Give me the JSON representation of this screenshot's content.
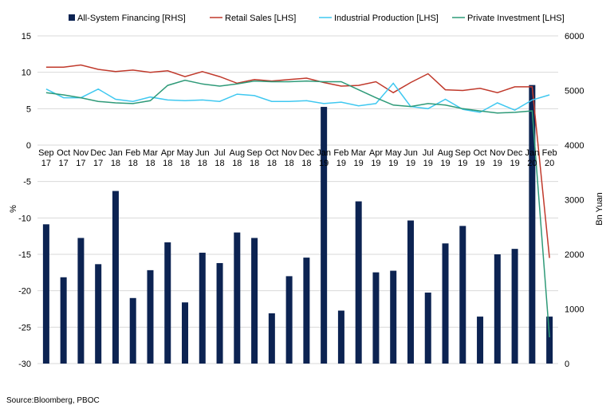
{
  "chart_data": {
    "type": "bar+line",
    "categories": [
      [
        "Sep",
        "17"
      ],
      [
        "Oct",
        "17"
      ],
      [
        "Nov",
        "17"
      ],
      [
        "Dec",
        "17"
      ],
      [
        "Jan",
        "18"
      ],
      [
        "Feb",
        "18"
      ],
      [
        "Mar",
        "18"
      ],
      [
        "Apr",
        "18"
      ],
      [
        "May",
        "18"
      ],
      [
        "Jun",
        "18"
      ],
      [
        "Jul",
        "18"
      ],
      [
        "Aug",
        "18"
      ],
      [
        "Sep",
        "18"
      ],
      [
        "Oct",
        "18"
      ],
      [
        "Nov",
        "18"
      ],
      [
        "Dec",
        "18"
      ],
      [
        "Jan",
        "19"
      ],
      [
        "Feb",
        "19"
      ],
      [
        "Mar",
        "19"
      ],
      [
        "Apr",
        "19"
      ],
      [
        "May",
        "19"
      ],
      [
        "Jun",
        "19"
      ],
      [
        "Jul",
        "19"
      ],
      [
        "Aug",
        "19"
      ],
      [
        "Sep",
        "19"
      ],
      [
        "Oct",
        "19"
      ],
      [
        "Nov",
        "19"
      ],
      [
        "Dec",
        "19"
      ],
      [
        "Jan",
        "20"
      ],
      [
        "Feb",
        "20"
      ]
    ],
    "left_axis": {
      "label": "%",
      "min": -30,
      "max": 15,
      "ticks": [
        15,
        10,
        5,
        0,
        -5,
        -10,
        -15,
        -20,
        -25,
        -30
      ]
    },
    "right_axis": {
      "label": "Bn Yuan",
      "min": 0,
      "max": 6000,
      "ticks": [
        6000,
        5000,
        4000,
        3000,
        2000,
        1000,
        0
      ]
    },
    "bar_series": {
      "name": "All-System Financing [RHS]",
      "color": "#0c2352",
      "axis": "right",
      "values": [
        2550,
        1580,
        2300,
        1820,
        3160,
        1200,
        1710,
        2220,
        1120,
        2030,
        1840,
        2400,
        2300,
        920,
        1600,
        1940,
        4700,
        970,
        2970,
        1670,
        1700,
        2620,
        1300,
        2200,
        2520,
        860,
        2000,
        2100,
        5100,
        860
      ]
    },
    "line_series": [
      {
        "name": "Retail Sales [LHS]",
        "color": "#c0392b",
        "axis": "left",
        "values": [
          10.7,
          10.7,
          11.0,
          10.4,
          10.1,
          10.3,
          10.0,
          10.2,
          9.4,
          10.1,
          9.4,
          8.5,
          9.0,
          8.8,
          9.0,
          9.2,
          8.6,
          8.1,
          8.2,
          8.7,
          7.2,
          8.6,
          9.8,
          7.6,
          7.5,
          7.8,
          7.2,
          8.0,
          8.0,
          -15.5
        ]
      },
      {
        "name": "Industrial Production [LHS]",
        "color": "#3fc8f0",
        "axis": "left",
        "values": [
          7.7,
          6.5,
          6.5,
          7.7,
          6.3,
          6.0,
          6.6,
          6.2,
          6.1,
          6.2,
          6.0,
          7.0,
          6.8,
          6.0,
          6.0,
          6.1,
          5.7,
          5.9,
          5.4,
          5.7,
          8.5,
          5.3,
          5.0,
          6.3,
          4.9,
          4.5,
          5.8,
          4.8,
          6.2,
          6.9
        ]
      },
      {
        "name": "Private Investment [LHS]",
        "color": "#2e9a78",
        "axis": "left",
        "values": [
          7.2,
          6.9,
          6.5,
          6.0,
          5.8,
          5.7,
          6.1,
          8.2,
          8.9,
          8.4,
          8.1,
          8.4,
          8.8,
          8.7,
          8.7,
          8.8,
          8.7,
          8.7,
          7.6,
          6.5,
          5.5,
          5.3,
          5.7,
          5.5,
          5.0,
          4.7,
          4.4,
          4.5,
          4.7,
          -26.4
        ]
      }
    ]
  },
  "source": "Source:Bloomberg, PBOC"
}
